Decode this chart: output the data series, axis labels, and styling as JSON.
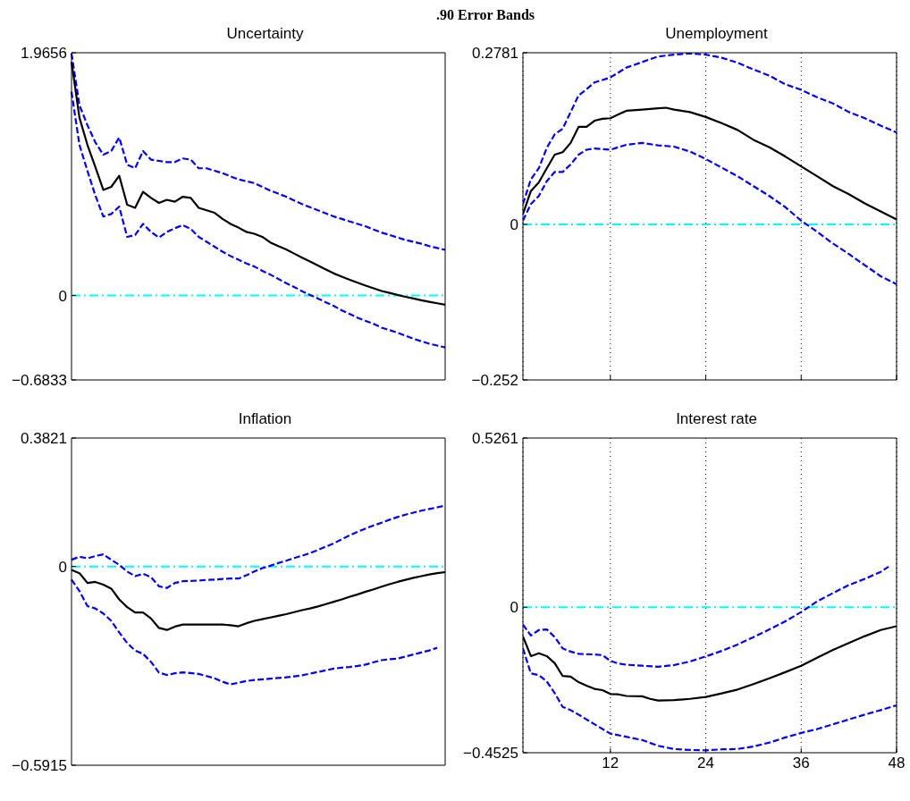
{
  "chart_data": [
    {
      "type": "line",
      "title": "Uncertainty",
      "annotations": [
        ".90 Error Bands"
      ],
      "categories": [
        null,
        null,
        null,
        null,
        null,
        null,
        null,
        null,
        null,
        null,
        null,
        null,
        null,
        null,
        null,
        null,
        null,
        null,
        null,
        null,
        null,
        null,
        null,
        null,
        null,
        null,
        null,
        null,
        null,
        null,
        null,
        null,
        null,
        null,
        null,
        null,
        null,
        null,
        null,
        null,
        null,
        null,
        null,
        null,
        null,
        null,
        null,
        null
      ],
      "ylim": [
        -0.6833,
        1.9656
      ],
      "yticks": [
        -0.6833,
        0,
        1.9656
      ],
      "tick_labels": "y",
      "ref_lines": [
        {
          "axis": "y",
          "value": 0,
          "color": "#00ffff"
        }
      ],
      "series": [
        {
          "color": "#0000ff",
          "line_style": "dashed",
          "values": [
            1.96,
            1.54,
            1.38,
            1.24,
            1.14,
            1.17,
            1.28,
            1.06,
            1.03,
            1.17,
            1.1,
            1.09,
            1.08,
            1.08,
            1.11,
            1.1,
            1.03,
            1.03,
            1.01,
            0.99,
            0.965,
            0.94,
            0.925,
            0.91,
            0.88,
            0.85,
            0.825,
            0.8,
            0.77,
            0.74,
            0.715,
            0.69,
            0.665,
            0.64,
            0.62,
            0.6,
            0.58,
            0.56,
            0.535,
            0.51,
            0.49,
            0.47,
            0.45,
            0.435,
            0.42,
            0.4,
            0.385,
            0.37
          ]
        },
        {
          "color": "#000000",
          "line_style": "solid",
          "values": [
            1.89,
            1.44,
            1.22,
            1.04,
            0.855,
            0.88,
            0.97,
            0.735,
            0.71,
            0.84,
            0.79,
            0.75,
            0.775,
            0.76,
            0.8,
            0.79,
            0.71,
            0.69,
            0.67,
            0.62,
            0.58,
            0.55,
            0.515,
            0.5,
            0.475,
            0.43,
            0.4,
            0.374,
            0.34,
            0.307,
            0.275,
            0.243,
            0.21,
            0.179,
            0.153,
            0.128,
            0.104,
            0.08,
            0.058,
            0.037,
            0.021,
            0.005,
            -0.01,
            -0.024,
            -0.038,
            -0.051,
            -0.063,
            -0.075
          ]
        },
        {
          "color": "#0000ff",
          "line_style": "dashed",
          "values": [
            1.65,
            1.22,
            1.01,
            0.81,
            0.64,
            0.66,
            0.72,
            0.475,
            0.49,
            0.58,
            0.515,
            0.47,
            0.515,
            0.545,
            0.57,
            0.54,
            0.475,
            0.435,
            0.395,
            0.355,
            0.32,
            0.29,
            0.26,
            0.235,
            0.2,
            0.17,
            0.135,
            0.1,
            0.07,
            0.035,
            0.005,
            -0.024,
            -0.055,
            -0.085,
            -0.12,
            -0.15,
            -0.18,
            -0.205,
            -0.23,
            -0.26,
            -0.28,
            -0.3,
            -0.325,
            -0.35,
            -0.37,
            -0.39,
            -0.405,
            -0.42
          ]
        }
      ]
    },
    {
      "type": "line",
      "title": "Unemployment",
      "xlim": [
        1,
        48
      ],
      "xticks": [
        12,
        24,
        36,
        48
      ],
      "ylim": [
        -0.252,
        0.2781
      ],
      "yticks": [
        -0.252,
        0,
        0.2781
      ],
      "grid": "x",
      "tick_labels": "y",
      "ref_lines": [
        {
          "axis": "y",
          "value": 0,
          "color": "#00ffff"
        }
      ],
      "series": [
        {
          "color": "#0000ff",
          "line_style": "dashed",
          "x": [
            1,
            2,
            3,
            4,
            5,
            6,
            7,
            8,
            9,
            10,
            12,
            14,
            16,
            18,
            20,
            22,
            24,
            26,
            28,
            30,
            32,
            34,
            36,
            38,
            40,
            42,
            44,
            46,
            48
          ],
          "values": [
            0.033,
            0.073,
            0.091,
            0.124,
            0.146,
            0.155,
            0.182,
            0.209,
            0.219,
            0.23,
            0.238,
            0.254,
            0.263,
            0.272,
            0.275,
            0.277,
            0.275,
            0.27,
            0.262,
            0.251,
            0.241,
            0.227,
            0.218,
            0.206,
            0.196,
            0.182,
            0.172,
            0.16,
            0.149
          ]
        },
        {
          "color": "#000000",
          "line_style": "solid",
          "x": [
            1,
            2,
            3,
            4,
            5,
            6,
            7,
            8,
            9,
            10,
            11,
            12,
            13,
            14,
            16,
            18,
            19,
            20,
            22,
            24,
            26,
            28,
            30,
            32,
            34,
            36,
            38,
            40,
            42,
            44,
            46,
            48
          ],
          "values": [
            0.017,
            0.054,
            0.068,
            0.091,
            0.113,
            0.117,
            0.132,
            0.158,
            0.158,
            0.168,
            0.171,
            0.172,
            0.178,
            0.184,
            0.186,
            0.188,
            0.189,
            0.186,
            0.182,
            0.174,
            0.164,
            0.153,
            0.137,
            0.125,
            0.11,
            0.094,
            0.078,
            0.062,
            0.049,
            0.034,
            0.021,
            0.008
          ]
        },
        {
          "color": "#0000ff",
          "line_style": "dashed",
          "x": [
            1,
            2,
            3,
            4,
            5,
            6,
            7,
            8,
            9,
            10,
            12,
            14,
            16,
            18,
            20,
            22,
            24,
            26,
            28,
            30,
            32,
            34,
            36,
            38,
            40,
            42,
            44,
            46,
            48
          ],
          "values": [
            0.006,
            0.033,
            0.046,
            0.07,
            0.085,
            0.085,
            0.097,
            0.113,
            0.121,
            0.123,
            0.121,
            0.129,
            0.132,
            0.128,
            0.126,
            0.118,
            0.106,
            0.092,
            0.078,
            0.062,
            0.046,
            0.028,
            0.006,
            -0.012,
            -0.031,
            -0.048,
            -0.066,
            -0.084,
            -0.097
          ]
        }
      ]
    },
    {
      "type": "line",
      "title": "Inflation",
      "categories": [
        null,
        null,
        null,
        null,
        null,
        null,
        null,
        null,
        null,
        null,
        null,
        null,
        null,
        null,
        null,
        null,
        null,
        null,
        null,
        null,
        null,
        null,
        null,
        null,
        null,
        null,
        null,
        null,
        null,
        null,
        null,
        null,
        null,
        null,
        null,
        null,
        null,
        null,
        null,
        null,
        null,
        null,
        null,
        null,
        null,
        null,
        null,
        null
      ],
      "ylim": [
        -0.5915,
        0.3821
      ],
      "yticks": [
        -0.5915,
        0,
        0.3821
      ],
      "tick_labels": "y",
      "ref_lines": [
        {
          "axis": "y",
          "value": 0,
          "color": "#00ffff"
        }
      ],
      "series": [
        {
          "color": "#0000ff",
          "line_style": "dashed",
          "values": [
            0.02,
            0.029,
            0.024,
            0.031,
            0.036,
            0.02,
            0.005,
            -0.015,
            -0.029,
            -0.022,
            -0.032,
            -0.059,
            -0.064,
            -0.049,
            -0.044,
            -0.043,
            -0.042,
            -0.04,
            -0.039,
            -0.037,
            -0.036,
            -0.036,
            -0.026,
            -0.015,
            -0.005,
            0.002,
            0.01,
            0.017,
            0.025,
            0.032,
            0.04,
            0.049,
            0.059,
            0.069,
            0.081,
            0.093,
            0.103,
            0.113,
            0.122,
            0.13,
            0.139,
            0.147,
            0.154,
            0.16,
            0.166,
            0.171,
            0.176,
            0.181
          ]
        },
        {
          "color": "#000000",
          "line_style": "solid",
          "values": [
            -0.01,
            -0.02,
            -0.049,
            -0.046,
            -0.054,
            -0.066,
            -0.098,
            -0.121,
            -0.137,
            -0.137,
            -0.155,
            -0.183,
            -0.189,
            -0.179,
            -0.173,
            -0.173,
            -0.173,
            -0.173,
            -0.173,
            -0.173,
            -0.175,
            -0.178,
            -0.169,
            -0.162,
            -0.157,
            -0.152,
            -0.147,
            -0.142,
            -0.136,
            -0.13,
            -0.125,
            -0.119,
            -0.112,
            -0.105,
            -0.098,
            -0.09,
            -0.083,
            -0.075,
            -0.068,
            -0.06,
            -0.053,
            -0.046,
            -0.04,
            -0.034,
            -0.029,
            -0.024,
            -0.02,
            -0.017
          ]
        },
        {
          "color": "#0000ff",
          "line_style": "dashed",
          "values": [
            -0.039,
            -0.073,
            -0.118,
            -0.125,
            -0.14,
            -0.162,
            -0.196,
            -0.228,
            -0.25,
            -0.26,
            -0.284,
            -0.316,
            -0.323,
            -0.318,
            -0.315,
            -0.317,
            -0.32,
            -0.326,
            -0.333,
            -0.343,
            -0.351,
            -0.346,
            -0.341,
            -0.338,
            -0.336,
            -0.334,
            -0.332,
            -0.33,
            -0.327,
            -0.324,
            -0.319,
            -0.314,
            -0.309,
            -0.304,
            -0.301,
            -0.299,
            -0.296,
            -0.292,
            -0.285,
            -0.279,
            -0.276,
            -0.274,
            -0.268,
            -0.262,
            -0.256,
            -0.25,
            -0.242,
            null
          ]
        }
      ]
    },
    {
      "type": "line",
      "title": "Interest rate",
      "xlim": [
        1,
        48
      ],
      "xticks": [
        12,
        24,
        36,
        48
      ],
      "ylim": [
        -0.4525,
        0.5261
      ],
      "yticks": [
        -0.4525,
        0,
        0.5261
      ],
      "grid": "x",
      "ref_lines": [
        {
          "axis": "y",
          "value": 0,
          "color": "#00ffff"
        }
      ],
      "series": [
        {
          "color": "#0000ff",
          "line_style": "dashed",
          "x": [
            1,
            2,
            3,
            4,
            5,
            6,
            7,
            8,
            10,
            11,
            12,
            13,
            14,
            16,
            18,
            20,
            22,
            24,
            26,
            28,
            30,
            32,
            34,
            36,
            38,
            40,
            42,
            44,
            46,
            47
          ],
          "values": [
            -0.054,
            -0.088,
            -0.071,
            -0.069,
            -0.093,
            -0.128,
            -0.138,
            -0.145,
            -0.147,
            -0.149,
            -0.167,
            -0.175,
            -0.179,
            -0.182,
            -0.185,
            -0.18,
            -0.169,
            -0.153,
            -0.136,
            -0.116,
            -0.093,
            -0.069,
            -0.044,
            -0.015,
            0.018,
            0.044,
            0.069,
            0.088,
            0.11,
            0.126
          ]
        },
        {
          "color": "#000000",
          "line_style": "solid",
          "x": [
            1,
            2,
            3,
            4,
            5,
            6,
            7,
            8,
            9,
            10,
            11,
            12,
            13,
            14,
            16,
            17,
            18,
            20,
            22,
            24,
            26,
            28,
            30,
            32,
            34,
            36,
            38,
            40,
            42,
            44,
            46,
            48
          ],
          "values": [
            -0.091,
            -0.152,
            -0.143,
            -0.152,
            -0.174,
            -0.214,
            -0.216,
            -0.233,
            -0.244,
            -0.254,
            -0.258,
            -0.27,
            -0.271,
            -0.276,
            -0.277,
            -0.285,
            -0.29,
            -0.289,
            -0.285,
            -0.279,
            -0.268,
            -0.256,
            -0.239,
            -0.221,
            -0.202,
            -0.182,
            -0.157,
            -0.133,
            -0.111,
            -0.09,
            -0.071,
            -0.059
          ]
        },
        {
          "color": "#0000ff",
          "line_style": "dashed",
          "x": [
            1,
            2,
            3,
            4,
            5,
            6,
            7,
            8,
            10,
            12,
            14,
            16,
            18,
            20,
            22,
            24,
            26,
            28,
            30,
            32,
            34,
            36,
            38,
            40,
            42,
            44,
            46,
            48
          ],
          "values": [
            -0.128,
            -0.206,
            -0.211,
            -0.231,
            -0.267,
            -0.31,
            -0.32,
            -0.334,
            -0.364,
            -0.393,
            -0.403,
            -0.413,
            -0.431,
            -0.441,
            -0.444,
            -0.445,
            -0.442,
            -0.441,
            -0.433,
            -0.421,
            -0.405,
            -0.391,
            -0.379,
            -0.364,
            -0.349,
            -0.334,
            -0.32,
            -0.305
          ]
        }
      ]
    }
  ]
}
